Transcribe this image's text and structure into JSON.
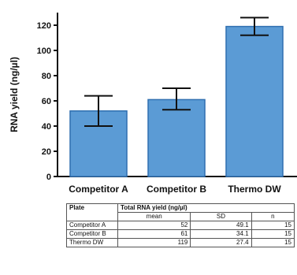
{
  "chart_data": {
    "type": "bar",
    "ylabel": "RNA yield (ng/µl)",
    "xlabel": "",
    "ylim": [
      0,
      130
    ],
    "yticks": [
      0,
      20,
      40,
      60,
      80,
      100,
      120
    ],
    "categories": [
      "Competitor A",
      "Competitor B",
      "Thermo DW"
    ],
    "values": [
      52,
      61,
      119
    ],
    "error_low": [
      40,
      53,
      112
    ],
    "error_high": [
      64,
      70,
      126
    ],
    "bar_color": "#5b9bd5",
    "bar_edge_color": "#2f6fb0",
    "grid": false
  },
  "table": {
    "plate_header": "Plate",
    "group_header": "Total RNA yield (ng/µl)",
    "sub_headers": [
      "mean",
      "SD",
      "n"
    ],
    "rows": [
      {
        "plate": "Competitor A",
        "mean": "52",
        "sd": "49.1",
        "n": "15"
      },
      {
        "plate": "Competitor B",
        "mean": "61",
        "sd": "34.1",
        "n": "15"
      },
      {
        "plate": "Thermo DW",
        "mean": "119",
        "sd": "27.4",
        "n": "15"
      }
    ]
  }
}
